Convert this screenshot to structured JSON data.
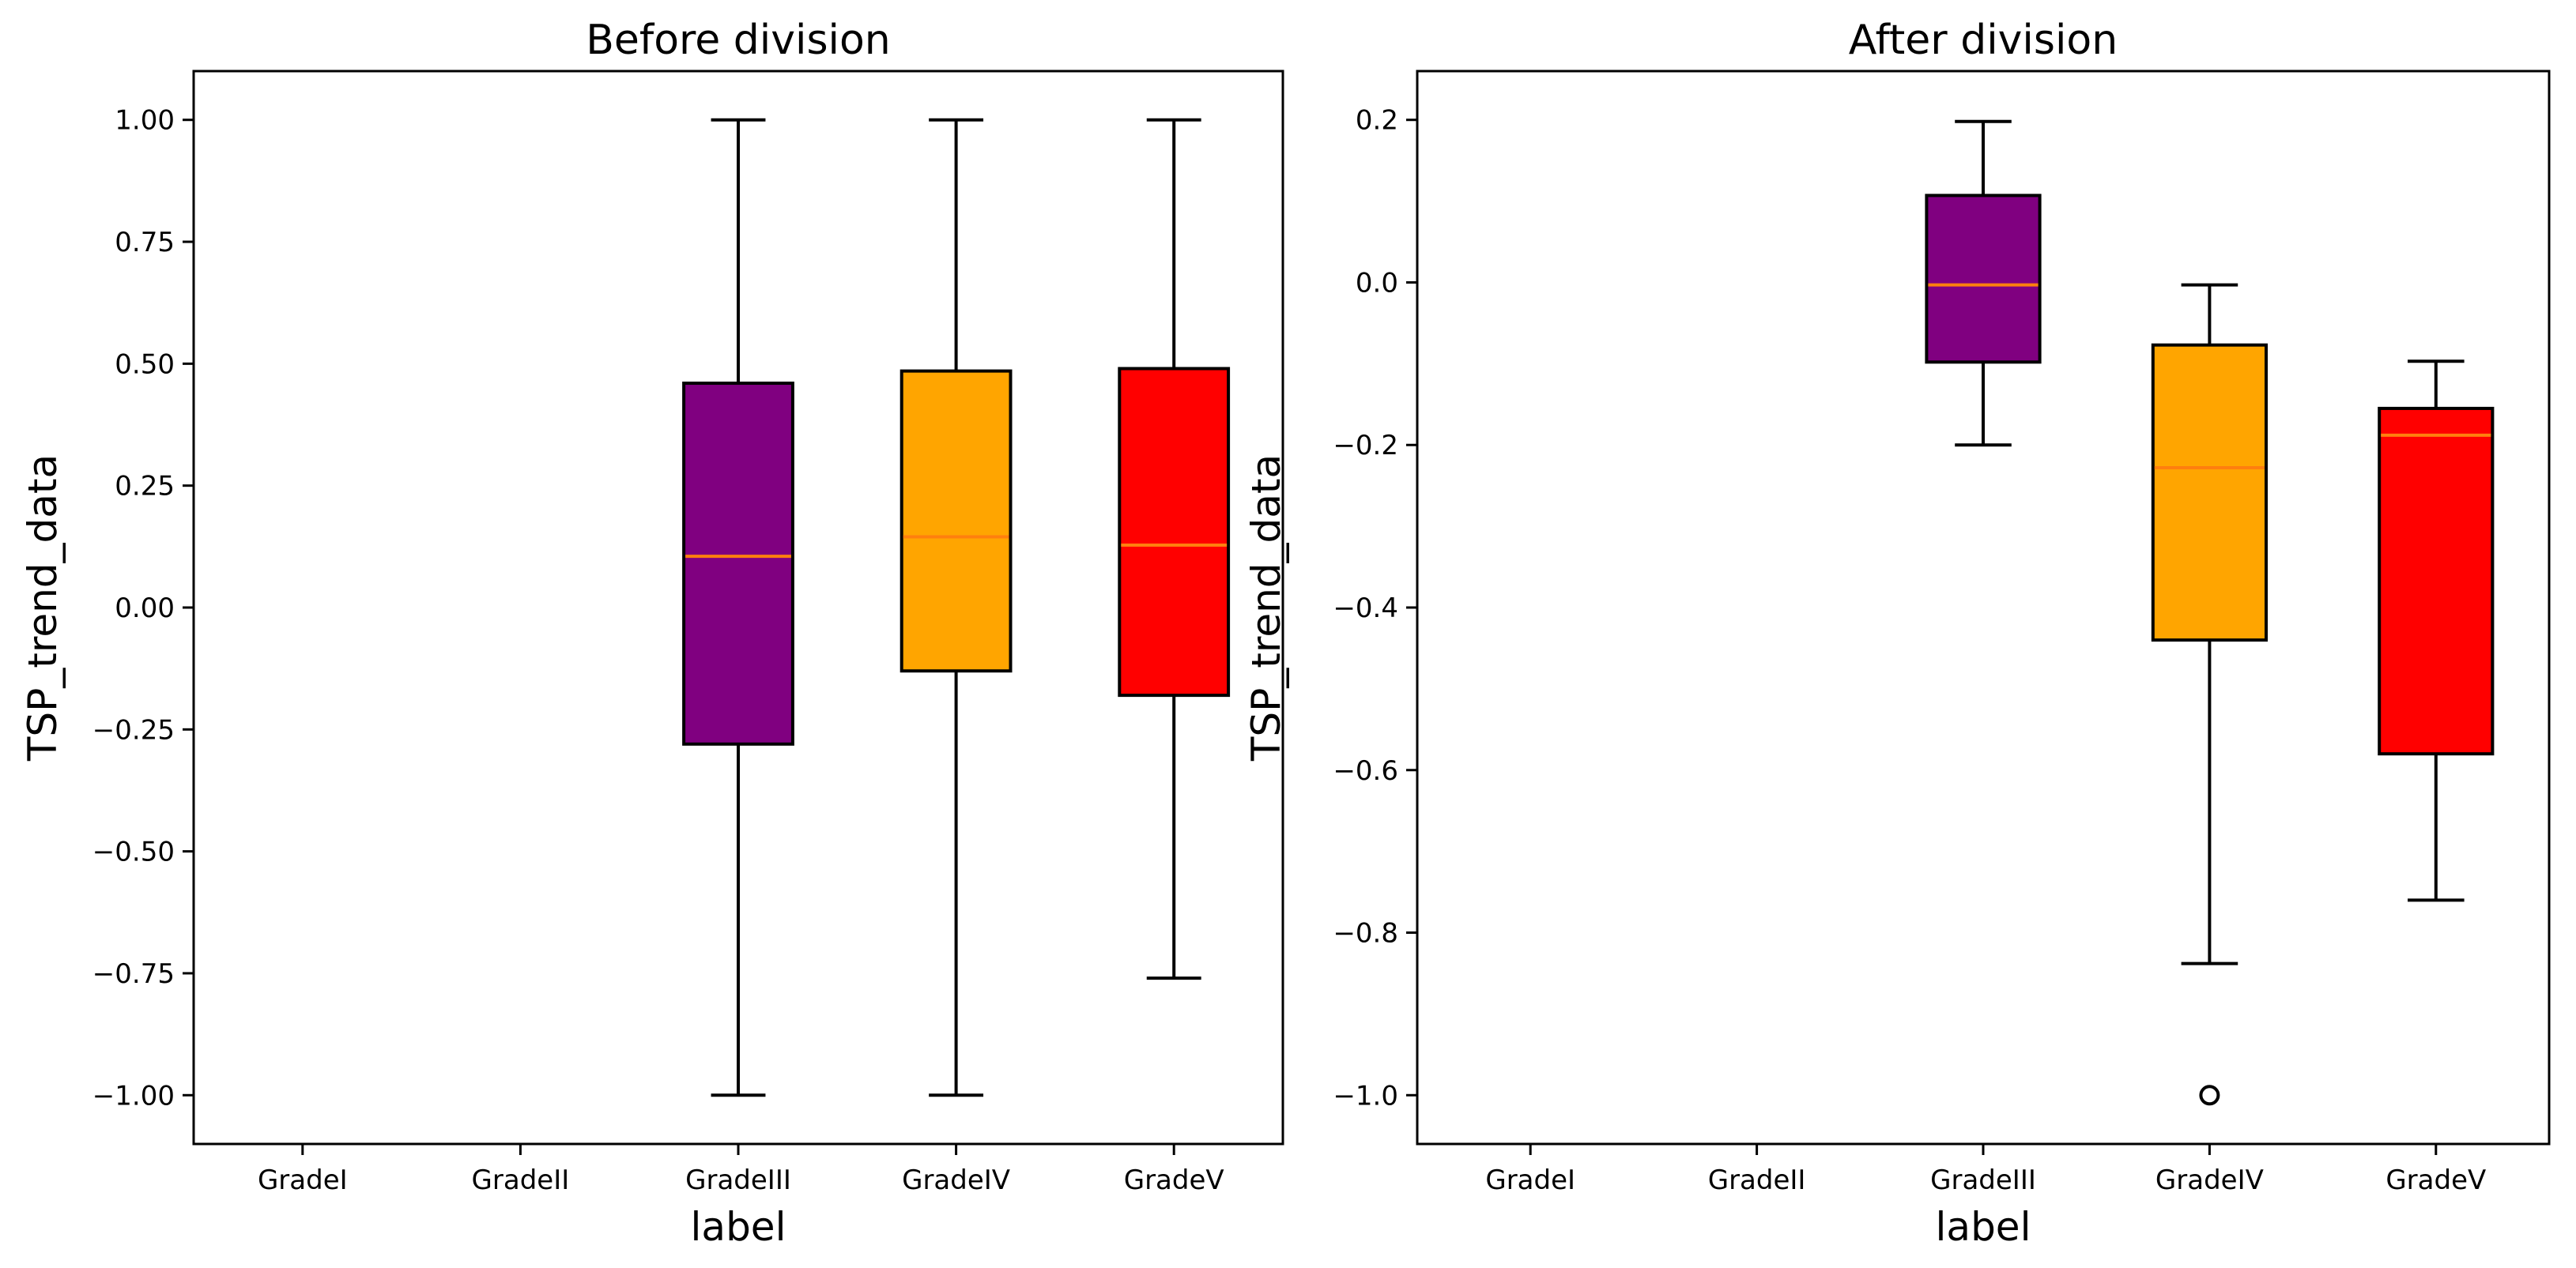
{
  "chart_data": [
    {
      "type": "box",
      "title": "Before division",
      "xlabel": "label",
      "ylabel": "TSP_trend_data",
      "categories": [
        "GradeI",
        "GradeII",
        "GradeIII",
        "GradeIV",
        "GradeV"
      ],
      "ylim": [
        -1.1,
        1.1
      ],
      "yticks": [
        -1.0,
        -0.75,
        -0.5,
        -0.25,
        0.0,
        0.25,
        0.5,
        0.75,
        1.0
      ],
      "ytick_labels": [
        "−1.00",
        "−0.75",
        "−0.50",
        "−0.25",
        "0.00",
        "0.25",
        "0.50",
        "0.75",
        "1.00"
      ],
      "boxes": [
        null,
        null,
        {
          "whisker_low": -1.0,
          "q1": -0.28,
          "median": 0.105,
          "q3": 0.46,
          "whisker_high": 1.0,
          "fliers": [],
          "color": "#800080"
        },
        {
          "whisker_low": -1.0,
          "q1": -0.13,
          "median": 0.145,
          "q3": 0.485,
          "whisker_high": 1.0,
          "fliers": [],
          "color": "#ffa500"
        },
        {
          "whisker_low": -0.76,
          "q1": -0.18,
          "median": 0.128,
          "q3": 0.49,
          "whisker_high": 1.0,
          "fliers": [],
          "color": "#ff0000"
        }
      ]
    },
    {
      "type": "box",
      "title": "After division",
      "xlabel": "label",
      "ylabel": "TSP_trend_data",
      "categories": [
        "GradeI",
        "GradeII",
        "GradeIII",
        "GradeIV",
        "GradeV"
      ],
      "ylim": [
        -1.06,
        0.26
      ],
      "yticks": [
        -1.0,
        -0.8,
        -0.6,
        -0.4,
        -0.2,
        0.0,
        0.2
      ],
      "ytick_labels": [
        "−1.0",
        "−0.8",
        "−0.6",
        "−0.4",
        "−0.2",
        "0.0",
        "0.2"
      ],
      "boxes": [
        null,
        null,
        {
          "whisker_low": -0.2,
          "q1": -0.098,
          "median": -0.003,
          "q3": 0.107,
          "whisker_high": 0.198,
          "fliers": [],
          "color": "#800080"
        },
        {
          "whisker_low": -0.838,
          "q1": -0.44,
          "median": -0.228,
          "q3": -0.077,
          "whisker_high": -0.003,
          "fliers": [
            -1.0
          ],
          "color": "#ffa500"
        },
        {
          "whisker_low": -0.76,
          "q1": -0.58,
          "median": -0.188,
          "q3": -0.155,
          "whisker_high": -0.097,
          "fliers": [],
          "color": "#ff0000"
        }
      ]
    }
  ],
  "style": {
    "median_color": "#ff7f0e",
    "line_color": "#000000"
  }
}
